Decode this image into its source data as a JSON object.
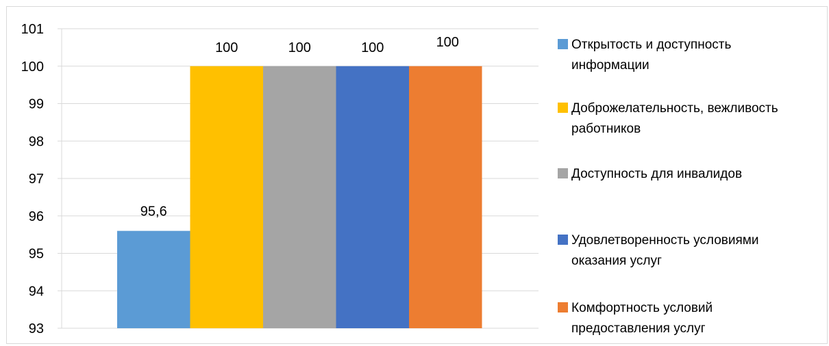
{
  "chart_data": {
    "type": "bar",
    "title": "",
    "xlabel": "",
    "ylabel": "",
    "ylim": [
      93,
      101
    ],
    "yticks": [
      93,
      94,
      95,
      96,
      97,
      98,
      99,
      100,
      101
    ],
    "grid": true,
    "legend_position": "right",
    "series": [
      {
        "name": "Открытость и доступность информации",
        "legend_lines": [
          "Открытость и доступность",
          "информации"
        ],
        "value": 95.6,
        "label": "95,6",
        "color": "#5B9BD5"
      },
      {
        "name": "Доброжелательность, вежливость работников",
        "legend_lines": [
          "Доброжелательность, вежливость",
          "работников"
        ],
        "value": 100,
        "label": "100",
        "color": "#FFC000"
      },
      {
        "name": "Доступность для инвалидов",
        "legend_lines": [
          "Доступность для инвалидов"
        ],
        "value": 100,
        "label": "100",
        "color": "#A5A5A5"
      },
      {
        "name": "Удовлетворенность условиями оказания услуг",
        "legend_lines": [
          "Удовлетворенность условиями",
          "оказания услуг"
        ],
        "value": 100,
        "label": "100",
        "color": "#4472C4"
      },
      {
        "name": "Комфортность условий предоставления услуг",
        "legend_lines": [
          "Комфортность условий",
          "предоставления услуг"
        ],
        "value": 100,
        "label": "100",
        "color": "#ED7D31"
      }
    ]
  }
}
